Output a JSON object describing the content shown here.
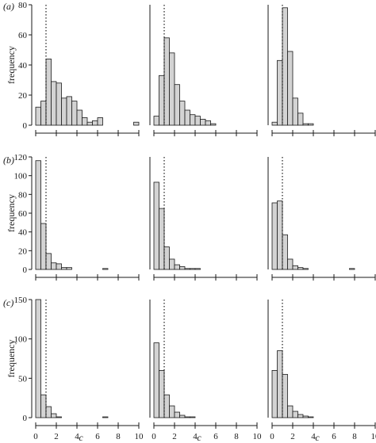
{
  "figure": {
    "row_labels": [
      "(a)",
      "(b)",
      "(c)"
    ],
    "ylabel": "frequency",
    "xlabel": "c",
    "bin_width": 0.5,
    "reference_line_x": 1
  },
  "chart_data": [
    {
      "type": "bar",
      "row": "(a)",
      "col": 1,
      "xlim": [
        0,
        10
      ],
      "ylim": [
        0,
        80
      ],
      "yticks": [
        0,
        20,
        40,
        60,
        80
      ],
      "ylabel": "frequency",
      "xlabel": "",
      "reference_line_x": 1,
      "bins": [
        0,
        0.5,
        1,
        1.5,
        2,
        2.5,
        3,
        3.5,
        4,
        4.5,
        5,
        5.5,
        6,
        6.5,
        7,
        7.5,
        8,
        8.5,
        9,
        9.5
      ],
      "values": [
        12,
        16,
        44,
        29,
        28,
        18,
        19,
        16,
        10,
        5,
        2,
        3,
        5,
        0,
        0,
        0,
        0,
        0,
        0,
        2
      ]
    },
    {
      "type": "bar",
      "row": "(a)",
      "col": 2,
      "xlim": [
        0,
        10
      ],
      "ylim": [
        0,
        80
      ],
      "yticks": [],
      "ylabel": "",
      "xlabel": "",
      "reference_line_x": 1,
      "bins": [
        0,
        0.5,
        1,
        1.5,
        2,
        2.5,
        3,
        3.5,
        4,
        4.5,
        5,
        5.5
      ],
      "values": [
        6,
        33,
        58,
        48,
        27,
        16,
        10,
        7,
        6,
        4,
        3,
        1
      ]
    },
    {
      "type": "bar",
      "row": "(a)",
      "col": 3,
      "xlim": [
        0,
        10
      ],
      "ylim": [
        0,
        80
      ],
      "yticks": [],
      "ylabel": "",
      "xlabel": "",
      "reference_line_x": 1,
      "bins": [
        0,
        0.5,
        1,
        1.5,
        2,
        2.5,
        3,
        3.5
      ],
      "values": [
        2,
        43,
        78,
        49,
        18,
        8,
        1,
        1
      ]
    },
    {
      "type": "bar",
      "row": "(b)",
      "col": 1,
      "xlim": [
        0,
        10
      ],
      "ylim": [
        0,
        120
      ],
      "yticks": [
        0,
        20,
        40,
        60,
        80,
        100,
        120
      ],
      "ylabel": "frequency",
      "xlabel": "",
      "reference_line_x": 1,
      "bins": [
        0,
        0.5,
        1,
        1.5,
        2,
        2.5,
        3,
        3.5,
        4,
        4.5,
        5,
        5.5,
        6,
        6.5
      ],
      "values": [
        116,
        49,
        17,
        7,
        6,
        2,
        2,
        0,
        0,
        0,
        0,
        0,
        0,
        1
      ]
    },
    {
      "type": "bar",
      "row": "(b)",
      "col": 2,
      "xlim": [
        0,
        10
      ],
      "ylim": [
        0,
        120
      ],
      "yticks": [],
      "ylabel": "",
      "xlabel": "",
      "reference_line_x": 1,
      "bins": [
        0,
        0.5,
        1,
        1.5,
        2,
        2.5,
        3,
        3.5,
        4
      ],
      "values": [
        93,
        65,
        24,
        11,
        5,
        3,
        1,
        1,
        1
      ]
    },
    {
      "type": "bar",
      "row": "(b)",
      "col": 3,
      "xlim": [
        0,
        10
      ],
      "ylim": [
        0,
        120
      ],
      "yticks": [],
      "ylabel": "",
      "xlabel": "",
      "reference_line_x": 1,
      "bins": [
        0,
        0.5,
        1,
        1.5,
        2,
        2.5,
        3,
        3.5,
        4,
        4.5,
        5,
        5.5,
        6,
        6.5,
        7,
        7.5
      ],
      "values": [
        71,
        73,
        37,
        11,
        4,
        2,
        1,
        0,
        0,
        0,
        0,
        0,
        0,
        0,
        0,
        1
      ]
    },
    {
      "type": "bar",
      "row": "(c)",
      "col": 1,
      "xlim": [
        0,
        10
      ],
      "ylim": [
        0,
        150
      ],
      "yticks": [
        0,
        50,
        100,
        150
      ],
      "ylabel": "frequency",
      "xlabel": "c",
      "reference_line_x": 1,
      "bins": [
        0,
        0.5,
        1,
        1.5,
        2,
        2.5,
        3,
        3.5,
        4,
        4.5,
        5,
        5.5,
        6,
        6.5
      ],
      "values": [
        150,
        29,
        14,
        5,
        1,
        0,
        0,
        0,
        0,
        0,
        0,
        0,
        0,
        1
      ]
    },
    {
      "type": "bar",
      "row": "(c)",
      "col": 2,
      "xlim": [
        0,
        10
      ],
      "ylim": [
        0,
        150
      ],
      "yticks": [],
      "ylabel": "",
      "xlabel": "c",
      "reference_line_x": 1,
      "bins": [
        0,
        0.5,
        1,
        1.5,
        2,
        2.5,
        3,
        3.5
      ],
      "values": [
        95,
        60,
        29,
        15,
        7,
        3,
        1,
        1
      ]
    },
    {
      "type": "bar",
      "row": "(c)",
      "col": 3,
      "xlim": [
        0,
        10
      ],
      "ylim": [
        0,
        150
      ],
      "yticks": [],
      "ylabel": "",
      "xlabel": "c",
      "reference_line_x": 1,
      "bins": [
        0,
        0.5,
        1,
        1.5,
        2,
        2.5,
        3,
        3.5
      ],
      "values": [
        60,
        85,
        55,
        15,
        8,
        4,
        2,
        1
      ]
    }
  ],
  "x_ticks": [
    0,
    2,
    4,
    6,
    8,
    10
  ]
}
